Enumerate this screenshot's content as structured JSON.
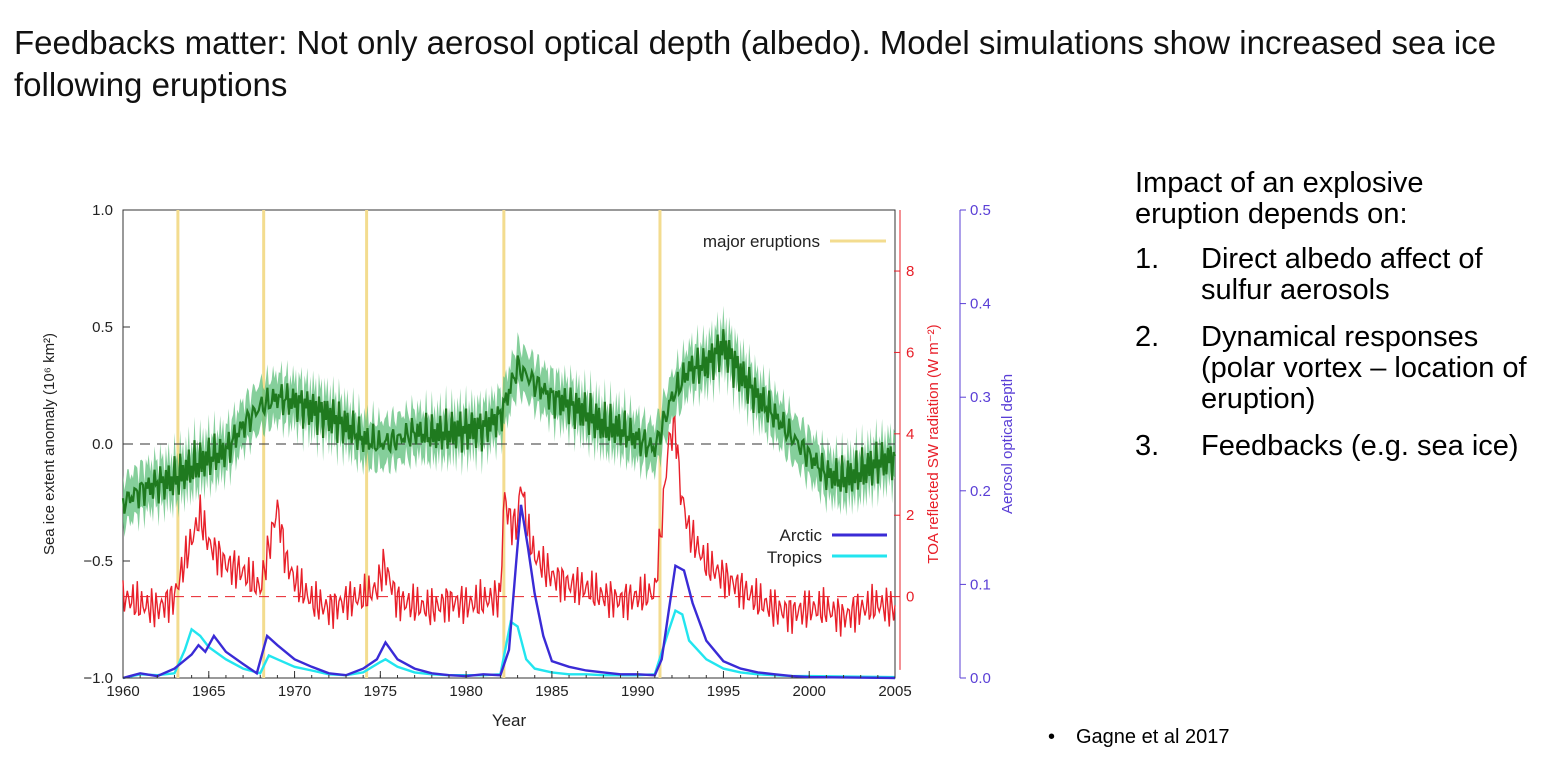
{
  "slide": {
    "title": "Feedbacks matter: Not only aerosol optical depth (albedo). Model simulations show increased sea ice following eruptions",
    "lead": "Impact of an explosive eruption depends on:",
    "points": [
      {
        "num": "1.",
        "text": "Direct albedo affect of sulfur aerosols"
      },
      {
        "num": "2.",
        "text": "Dynamical responses (polar vortex – location of eruption)"
      },
      {
        "num": "3.",
        "text": "Feedbacks (e.g. sea ice)"
      }
    ],
    "citation": "Gagne et al 2017",
    "bullet": "•"
  },
  "colors": {
    "ice": "#1f7a1f",
    "ice_band": "#5cbf7a",
    "toa": "#e8202a",
    "arctic": "#3a2bd6",
    "tropics": "#22e5ef",
    "eruption": "#f3dc8f",
    "aod_axis": "#5a3fd6"
  },
  "chart_data": {
    "type": "line",
    "xlabel": "Year",
    "ylabel": "Sea ice extent anomaly (10⁶ km²)",
    "ylabel_right1": "TOA reflected SW radiation (W m⁻²)",
    "ylabel_right2": "Aerosol optical depth",
    "xlim": [
      1960,
      2005
    ],
    "ylim": [
      -1.0,
      1.0
    ],
    "ylim_right1_range": [
      -2.0,
      9.5
    ],
    "ylim_right2": [
      0.0,
      0.5
    ],
    "xticks": [
      "1960",
      "1965",
      "1970",
      "1975",
      "1980",
      "1985",
      "1990",
      "1995",
      "2000",
      "2005"
    ],
    "yticks": [
      "−1.0",
      "−0.5",
      "0.0",
      "0.5",
      "1.0"
    ],
    "yticks_right1": [
      "0",
      "2",
      "4",
      "6",
      "8"
    ],
    "yticks_right2": [
      "0.0",
      "0.1",
      "0.2",
      "0.3",
      "0.4",
      "0.5"
    ],
    "eruption_label": "major eruptions",
    "eruptions": [
      1963.2,
      1968.2,
      1974.2,
      1982.2,
      1991.3
    ],
    "legend": [
      {
        "label": "Arctic",
        "color_key": "arctic"
      },
      {
        "label": "Tropics",
        "color_key": "tropics"
      }
    ],
    "series": [
      {
        "name": "Sea ice extent anomaly",
        "axis": "left",
        "x": [
          1960,
          1961,
          1962,
          1963,
          1964,
          1965,
          1966,
          1967,
          1968,
          1969,
          1970,
          1971,
          1972,
          1973,
          1974,
          1975,
          1976,
          1977,
          1978,
          1979,
          1980,
          1981,
          1982,
          1983,
          1984,
          1985,
          1986,
          1987,
          1988,
          1989,
          1990,
          1991,
          1992,
          1993,
          1994,
          1995,
          1996,
          1997,
          1998,
          1999,
          2000,
          2001,
          2002,
          2003,
          2004,
          2005
        ],
        "values": [
          -0.25,
          -0.2,
          -0.17,
          -0.15,
          -0.1,
          -0.06,
          -0.03,
          0.08,
          0.16,
          0.2,
          0.18,
          0.15,
          0.12,
          0.08,
          0.02,
          0.0,
          0.02,
          0.05,
          0.04,
          0.05,
          0.06,
          0.07,
          0.12,
          0.33,
          0.26,
          0.2,
          0.17,
          0.13,
          0.08,
          0.06,
          0.02,
          -0.02,
          0.2,
          0.32,
          0.34,
          0.42,
          0.3,
          0.2,
          0.12,
          0.03,
          -0.05,
          -0.13,
          -0.15,
          -0.12,
          -0.08,
          -0.06
        ],
        "band_halfwidth": 0.1
      },
      {
        "name": "TOA reflected SW radiation",
        "axis": "right1",
        "x": [
          1960,
          1961,
          1962,
          1963,
          1963.6,
          1964,
          1964.5,
          1965,
          1966,
          1967,
          1968,
          1968.5,
          1969,
          1969.5,
          1970,
          1971,
          1972,
          1973,
          1974,
          1974.8,
          1975.2,
          1976,
          1977,
          1978,
          1979,
          1980,
          1981,
          1982,
          1982.2,
          1982.6,
          1983,
          1983.2,
          1983.6,
          1984,
          1985,
          1986,
          1987,
          1988,
          1989,
          1990,
          1991,
          1991.4,
          1991.8,
          1992.2,
          1992.5,
          1993,
          1994,
          1995,
          1996,
          1997,
          1998,
          1999,
          2000,
          2001,
          2002,
          2003,
          2004,
          2005
        ],
        "values": [
          0.0,
          -0.2,
          -0.3,
          0.0,
          0.9,
          1.4,
          2.0,
          1.3,
          0.8,
          0.6,
          0.2,
          1.2,
          2.2,
          0.9,
          0.4,
          -0.1,
          -0.3,
          -0.1,
          0.0,
          0.2,
          0.8,
          -0.1,
          -0.2,
          -0.3,
          -0.1,
          -0.2,
          -0.1,
          0.0,
          2.5,
          1.8,
          1.8,
          2.9,
          1.6,
          1.0,
          0.5,
          0.3,
          0.2,
          0.0,
          -0.1,
          0.0,
          0.1,
          1.8,
          3.8,
          4.2,
          2.6,
          1.6,
          0.8,
          0.5,
          0.2,
          -0.1,
          -0.3,
          -0.4,
          -0.3,
          -0.3,
          -0.5,
          -0.3,
          -0.2,
          -0.3
        ]
      },
      {
        "name": "Arctic",
        "axis": "right2",
        "x": [
          1960,
          1961,
          1962,
          1963,
          1964,
          1964.4,
          1964.8,
          1965.3,
          1966,
          1967,
          1967.8,
          1968.4,
          1969,
          1970,
          1971,
          1972,
          1973,
          1974,
          1974.8,
          1975.3,
          1976,
          1977,
          1978,
          1979,
          1980,
          1981,
          1982,
          1982.5,
          1982.9,
          1983.2,
          1983.6,
          1984,
          1984.5,
          1985,
          1986,
          1987,
          1988,
          1989,
          1990,
          1991,
          1991.4,
          1991.8,
          1992.2,
          1992.7,
          1993.2,
          1994,
          1995,
          1996,
          1997,
          1998,
          1999,
          2000,
          2005
        ],
        "values": [
          0.0,
          0.005,
          0.002,
          0.01,
          0.025,
          0.035,
          0.028,
          0.045,
          0.028,
          0.015,
          0.005,
          0.045,
          0.035,
          0.02,
          0.012,
          0.005,
          0.003,
          0.01,
          0.02,
          0.038,
          0.02,
          0.01,
          0.005,
          0.003,
          0.002,
          0.004,
          0.003,
          0.03,
          0.12,
          0.185,
          0.14,
          0.09,
          0.045,
          0.018,
          0.012,
          0.008,
          0.006,
          0.004,
          0.004,
          0.003,
          0.02,
          0.07,
          0.12,
          0.115,
          0.08,
          0.04,
          0.018,
          0.01,
          0.006,
          0.004,
          0.002,
          0.001,
          0.0
        ]
      },
      {
        "name": "Tropics",
        "axis": "right2",
        "x": [
          1960,
          1961,
          1962,
          1963,
          1963.6,
          1964,
          1964.5,
          1965,
          1966,
          1967,
          1968,
          1968.5,
          1969,
          1970,
          1971,
          1972,
          1973,
          1974,
          1975,
          1975.3,
          1976,
          1977,
          1978,
          1979,
          1980,
          1981,
          1982,
          1982.6,
          1983,
          1983.5,
          1984,
          1985,
          1986,
          1987,
          1988,
          1989,
          1990,
          1991,
          1991.8,
          1992.2,
          1992.6,
          1993,
          1994,
          1995,
          1996,
          1997,
          1998,
          1999,
          2000,
          2005
        ],
        "values": [
          0.0,
          0.004,
          0.003,
          0.005,
          0.03,
          0.052,
          0.045,
          0.033,
          0.02,
          0.01,
          0.005,
          0.024,
          0.02,
          0.012,
          0.008,
          0.004,
          0.003,
          0.006,
          0.017,
          0.02,
          0.012,
          0.006,
          0.004,
          0.003,
          0.003,
          0.003,
          0.004,
          0.06,
          0.055,
          0.02,
          0.01,
          0.006,
          0.004,
          0.004,
          0.003,
          0.003,
          0.003,
          0.004,
          0.05,
          0.072,
          0.068,
          0.04,
          0.02,
          0.01,
          0.006,
          0.004,
          0.003,
          0.002,
          0.002,
          0.001
        ]
      }
    ]
  }
}
